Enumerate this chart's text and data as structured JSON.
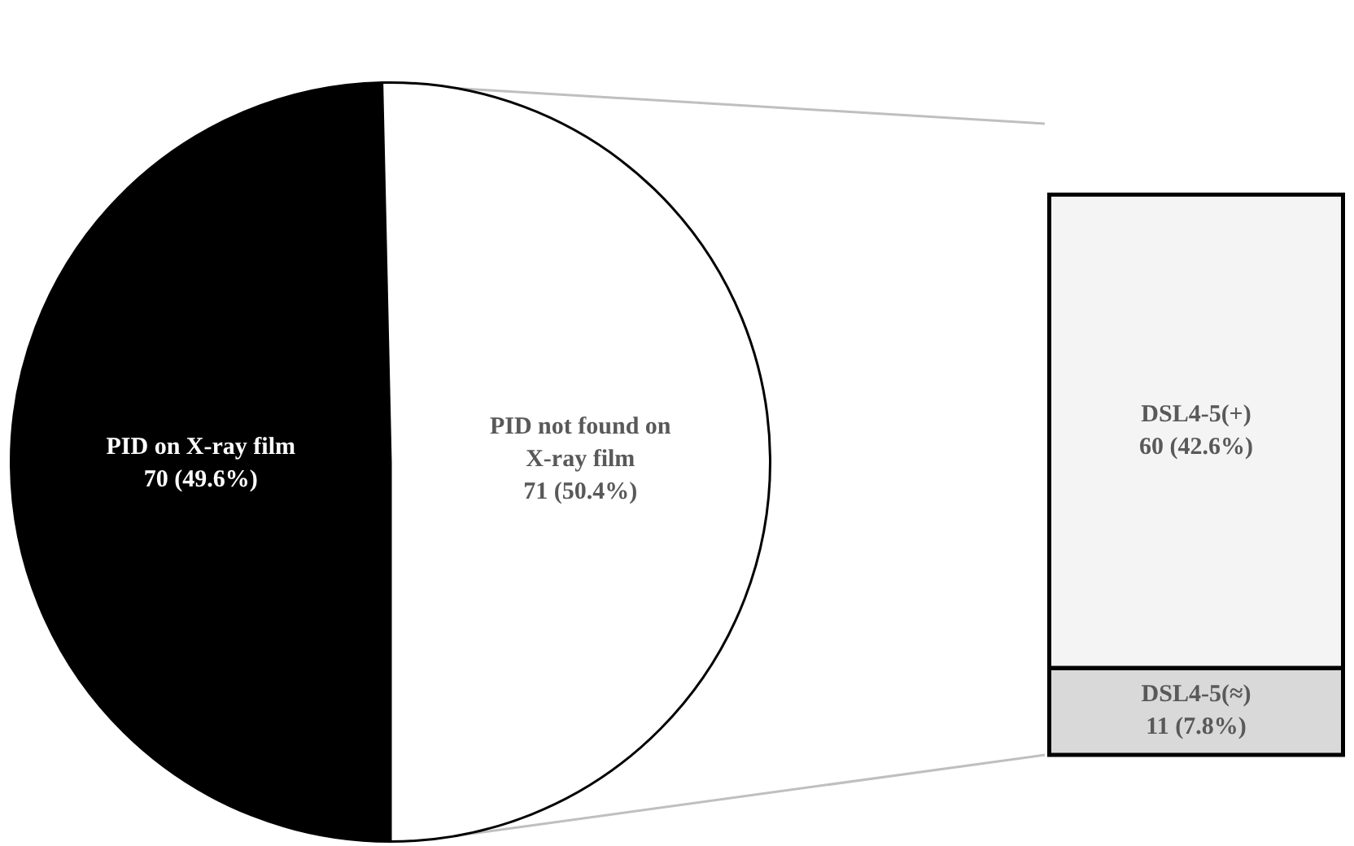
{
  "chart_data": [
    {
      "type": "pie",
      "categories": [
        "PID on X-ray film",
        "PID not found on X-ray film"
      ],
      "values": [
        70,
        71
      ],
      "colors": [
        "#000000",
        "#ffffff"
      ],
      "value_labels": [
        "70 (49.6%)",
        "71 (50.4%)"
      ]
    },
    {
      "type": "bar",
      "stacked": true,
      "categories": [
        null
      ],
      "series": [
        {
          "name": "DSL4-5(≈)",
          "color": "#d9d9d9",
          "values": [
            11
          ],
          "value_labels": [
            "11 (7.8%)"
          ]
        },
        {
          "name": "DSL4-5(+)",
          "color": "#f4f4f4",
          "values": [
            60
          ],
          "value_labels": [
            "60 (42.6%)"
          ]
        }
      ]
    }
  ]
}
